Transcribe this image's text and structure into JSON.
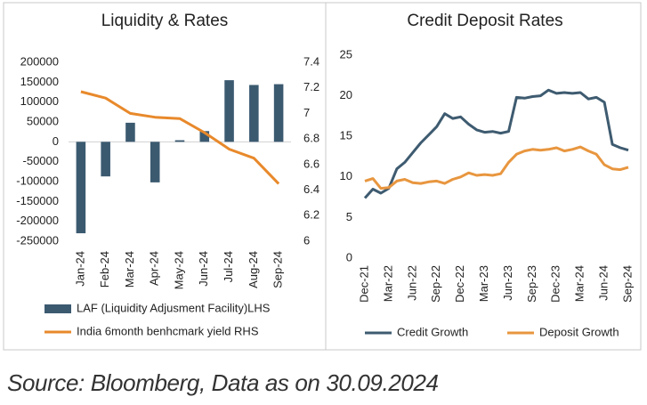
{
  "chart_data": [
    {
      "type": "bar",
      "title": "Liquidity & Rates",
      "categories": [
        "Jan-24",
        "Feb-24",
        "Mar-24",
        "Apr-24",
        "May-24",
        "Jun-24",
        "Jul-24",
        "Aug-24",
        "Sep-24"
      ],
      "series": [
        {
          "name": "LAF (Liquidity Adjusment Facility)LHS",
          "color": "#3b5a70",
          "type": "bar",
          "values": [
            -230000,
            -87000,
            48000,
            -102000,
            4000,
            27000,
            155000,
            143000,
            145000
          ]
        },
        {
          "name": "India 6month benhcmark yield RHS",
          "color": "#e8892b",
          "type": "line",
          "axis": "y2",
          "values": [
            7.17,
            7.12,
            7.0,
            6.97,
            6.96,
            6.85,
            6.72,
            6.65,
            6.45
          ]
        }
      ],
      "ylim": [
        -250000,
        200000
      ],
      "yticks": [
        -250000,
        -200000,
        -150000,
        -100000,
        -50000,
        0,
        50000,
        100000,
        150000,
        200000
      ],
      "y2lim": [
        6,
        7.4
      ],
      "y2ticks": [
        6,
        6.2,
        6.4,
        6.6,
        6.8,
        7,
        7.2,
        7.4
      ],
      "grid": false
    },
    {
      "type": "line",
      "title": "Credit Deposit Rates",
      "categories": [
        "Dec-21",
        null,
        null,
        "Mar-22",
        null,
        null,
        "Jun-22",
        null,
        null,
        "Sep-22",
        null,
        null,
        "Dec-22",
        null,
        null,
        "Mar-23",
        null,
        null,
        "Jun-23",
        null,
        null,
        "Sep-23",
        null,
        null,
        "Dec-23",
        null,
        null,
        "Mar-24",
        null,
        null,
        "Jun-24",
        null,
        null,
        "Sep-24"
      ],
      "series": [
        {
          "name": "Credit Growth",
          "color": "#3e5b70",
          "values": [
            7.4,
            8.5,
            8.0,
            8.6,
            11.0,
            11.8,
            13.0,
            14.2,
            15.2,
            16.2,
            17.8,
            17.2,
            17.4,
            16.5,
            15.8,
            15.5,
            15.6,
            15.4,
            15.6,
            19.8,
            19.7,
            19.9,
            20.0,
            20.7,
            20.3,
            20.4,
            20.3,
            20.4,
            19.6,
            19.8,
            19.2,
            14.0,
            13.6,
            13.3
          ]
        },
        {
          "name": "Deposit Growth",
          "color": "#e8963f",
          "values": [
            9.5,
            9.8,
            8.6,
            8.7,
            9.5,
            9.7,
            9.3,
            9.2,
            9.4,
            9.5,
            9.2,
            9.7,
            10.0,
            10.5,
            10.2,
            10.3,
            10.2,
            10.4,
            11.8,
            12.8,
            13.2,
            13.4,
            13.3,
            13.4,
            13.6,
            13.2,
            13.4,
            13.7,
            13.2,
            12.8,
            11.5,
            11.0,
            10.9,
            11.2
          ]
        }
      ],
      "ylim": [
        0,
        25
      ],
      "yticks": [
        0,
        5,
        10,
        15,
        20,
        25
      ],
      "grid": false
    }
  ],
  "source": "Source: Bloomberg, Data as on 30.09.2024"
}
